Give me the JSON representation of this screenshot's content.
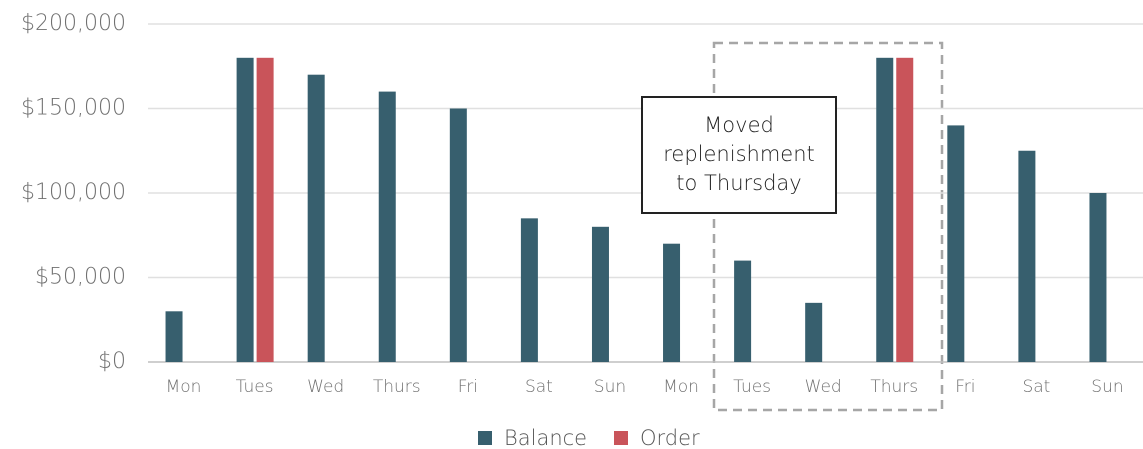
{
  "chart_data": {
    "type": "bar",
    "categories": [
      "Mon",
      "Tues",
      "Wed",
      "Thurs",
      "Fri",
      "Sat",
      "Sun",
      "Mon",
      "Tues",
      "Wed",
      "Thurs",
      "Fri",
      "Sat",
      "Sun"
    ],
    "series": [
      {
        "name": "Balance",
        "color": "#375f6e",
        "values": [
          30000,
          180000,
          170000,
          160000,
          150000,
          85000,
          80000,
          70000,
          60000,
          35000,
          180000,
          140000,
          125000,
          100000
        ]
      },
      {
        "name": "Order",
        "color": "#c9545a",
        "values": [
          null,
          180000,
          null,
          null,
          null,
          null,
          null,
          null,
          null,
          null,
          180000,
          null,
          null,
          null
        ]
      }
    ],
    "ylim": [
      0,
      200000
    ],
    "yticks": [
      {
        "value": 0,
        "label": "$0"
      },
      {
        "value": 50000,
        "label": "$50,000"
      },
      {
        "value": 100000,
        "label": "$100,000"
      },
      {
        "value": 150000,
        "label": "$150,000"
      },
      {
        "value": 200000,
        "label": "$200,000"
      }
    ],
    "grid": true,
    "legend": "bottom",
    "annotation": [
      "Moved",
      "replenishment",
      "to Thursday"
    ]
  }
}
